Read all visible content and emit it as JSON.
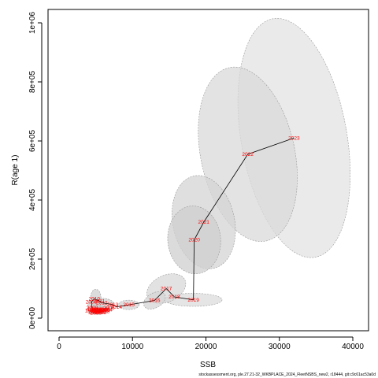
{
  "chart_data": {
    "type": "scatter",
    "xlabel": "SSB",
    "ylabel": "R(age 1)",
    "xlim": [
      0,
      40000
    ],
    "ylim": [
      0,
      1000000
    ],
    "x_ticks": [
      {
        "value": 0,
        "label": "0"
      },
      {
        "value": 10000,
        "label": "10000"
      },
      {
        "value": 20000,
        "label": "20000"
      },
      {
        "value": 30000,
        "label": "30000"
      },
      {
        "value": 40000,
        "label": "40000"
      }
    ],
    "y_ticks": [
      {
        "value": 0,
        "label": "0e+00"
      },
      {
        "value": 200000,
        "label": "2e+05"
      },
      {
        "value": 400000,
        "label": "4e+05"
      },
      {
        "value": 600000,
        "label": "6e+05"
      },
      {
        "value": 800000,
        "label": "8e+05"
      },
      {
        "value": 1000000,
        "label": "1e+06"
      }
    ],
    "points": [
      {
        "year": "2009",
        "ssb": 4400,
        "rec": 55000
      },
      {
        "year": "2010",
        "ssb": 4800,
        "rec": 65000
      },
      {
        "year": "2011",
        "ssb": 5500,
        "rec": 58000
      },
      {
        "year": "2012",
        "ssb": 5800,
        "rec": 52000
      },
      {
        "year": "2013",
        "ssb": 7300,
        "rec": 46000
      },
      {
        "year": "2014",
        "ssb": 7800,
        "rec": 38000
      },
      {
        "year": "2015",
        "ssb": 9500,
        "rec": 45000
      },
      {
        "year": "2016",
        "ssb": 13000,
        "rec": 60000
      },
      {
        "year": "2017",
        "ssb": 14600,
        "rec": 100000
      },
      {
        "year": "2018",
        "ssb": 15700,
        "rec": 72000
      },
      {
        "year": "2019",
        "ssb": 18300,
        "rec": 62000
      },
      {
        "year": "2020",
        "ssb": 18400,
        "rec": 265000
      },
      {
        "year": "2021",
        "ssb": 19700,
        "rec": 325000
      },
      {
        "year": "2022",
        "ssb": 25700,
        "rec": 555000
      },
      {
        "year": "2023",
        "ssb": 32000,
        "rec": 610000
      }
    ],
    "early_years": [
      {
        "year": "1990",
        "ssb": 4300,
        "rec": 25000
      },
      {
        "year": "1991",
        "ssb": 4600,
        "rec": 30000
      },
      {
        "year": "1992",
        "ssb": 4900,
        "rec": 22000
      },
      {
        "year": "1993",
        "ssb": 5100,
        "rec": 28000
      },
      {
        "year": "1994",
        "ssb": 5300,
        "rec": 24000
      },
      {
        "year": "1995",
        "ssb": 5600,
        "rec": 26000
      },
      {
        "year": "1996",
        "ssb": 5800,
        "rec": 30000
      },
      {
        "year": "1997",
        "ssb": 6000,
        "rec": 25000
      },
      {
        "year": "1998",
        "ssb": 6200,
        "rec": 27000
      },
      {
        "year": "1999",
        "ssb": 4700,
        "rec": 20000
      },
      {
        "year": "2000",
        "ssb": 5000,
        "rec": 18000
      },
      {
        "year": "2001",
        "ssb": 5400,
        "rec": 21000
      },
      {
        "year": "2002",
        "ssb": 5700,
        "rec": 19000
      },
      {
        "year": "2003",
        "ssb": 6100,
        "rec": 23000
      },
      {
        "year": "2004",
        "ssb": 6500,
        "rec": 28000
      },
      {
        "year": "2005",
        "ssb": 6800,
        "rec": 35000
      },
      {
        "year": "2006",
        "ssb": 5200,
        "rec": 30000
      },
      {
        "year": "2007",
        "ssb": 4900,
        "rec": 27000
      },
      {
        "year": "2008",
        "ssb": 4500,
        "rec": 35000
      }
    ],
    "ellipses": [
      {
        "year": "2023",
        "ssb": 32000,
        "rec": 610000,
        "rx": 7200,
        "ry": 410000,
        "rot": -10,
        "fill": "#e3e3e3"
      },
      {
        "year": "2022",
        "ssb": 25700,
        "rec": 555000,
        "rx": 6400,
        "ry": 300000,
        "rot": -12,
        "fill": "#d9d9d9"
      },
      {
        "year": "2021",
        "ssb": 19700,
        "rec": 325000,
        "rx": 4200,
        "ry": 160000,
        "rot": -12,
        "fill": "#d4d4d4"
      },
      {
        "year": "2020",
        "ssb": 18400,
        "rec": 265000,
        "rx": 3600,
        "ry": 115000,
        "rot": -5,
        "fill": "#cfcfcf"
      },
      {
        "year": "2019",
        "ssb": 18300,
        "rec": 62000,
        "rx": 3900,
        "ry": 22000,
        "rot": 0,
        "fill": "#dcdcdc"
      },
      {
        "year": "2017",
        "ssb": 14600,
        "rec": 100000,
        "rx": 2800,
        "ry": 45000,
        "rot": -25,
        "fill": "#d8d8d8"
      },
      {
        "year": "2016",
        "ssb": 13000,
        "rec": 60000,
        "rx": 1600,
        "ry": 25000,
        "rot": -30,
        "fill": "#d6d6d6"
      },
      {
        "year": "2015",
        "ssb": 9500,
        "rec": 45000,
        "rx": 1400,
        "ry": 16000,
        "rot": 0,
        "fill": "#d5d5d5"
      },
      {
        "year": "2012",
        "ssb": 6000,
        "rec": 45000,
        "rx": 1500,
        "ry": 22000,
        "rot": 0,
        "fill": "#d2d2d2"
      },
      {
        "year": "2010",
        "ssb": 5000,
        "rec": 70000,
        "rx": 700,
        "ry": 28000,
        "rot": 0,
        "fill": "#d0d0d0"
      },
      {
        "year": "2009",
        "ssb": 4800,
        "rec": 40000,
        "rx": 900,
        "ry": 25000,
        "rot": 0,
        "fill": "#d0d0d0"
      },
      {
        "year": "early",
        "ssb": 5300,
        "rec": 27000,
        "rx": 1500,
        "ry": 14000,
        "rot": 0,
        "fill": "#cccccc"
      }
    ],
    "line_color": "#000000",
    "label_color": "#ff0000"
  },
  "footer": "stockassessment.org, ple.27.21-32_WKBPLACE_2024_FleetNSBS_new2, r18444, git:c9c61ac53a0d"
}
